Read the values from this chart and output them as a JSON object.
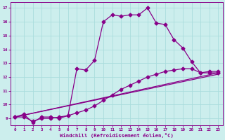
{
  "line1_x": [
    0,
    1,
    2,
    3,
    4,
    5,
    6,
    7,
    8,
    9,
    10,
    11,
    12,
    13,
    14,
    15,
    16,
    17,
    18,
    19,
    20,
    21,
    22,
    23
  ],
  "line1_y": [
    9.1,
    9.3,
    8.7,
    9.1,
    9.1,
    9.0,
    9.2,
    12.6,
    12.5,
    13.2,
    16.0,
    16.5,
    16.4,
    16.5,
    16.5,
    17.0,
    15.9,
    15.8,
    14.7,
    14.1,
    13.1,
    12.3,
    12.4,
    12.4
  ],
  "line2_x": [
    0,
    1,
    2,
    3,
    4,
    5,
    6,
    7,
    8,
    9,
    10,
    11,
    12,
    13,
    14,
    15,
    16,
    17,
    18,
    19,
    20,
    21,
    22,
    23
  ],
  "line2_y": [
    9.1,
    9.1,
    8.8,
    9.0,
    9.0,
    9.1,
    9.2,
    9.4,
    9.6,
    9.9,
    10.3,
    10.7,
    11.1,
    11.4,
    11.7,
    12.0,
    12.2,
    12.4,
    12.5,
    12.6,
    12.6,
    12.3,
    12.3,
    12.3
  ],
  "line3_x": [
    0,
    23
  ],
  "line3_y": [
    9.1,
    12.3
  ],
  "line4_x": [
    0,
    23
  ],
  "line4_y": [
    9.1,
    12.2
  ],
  "bg_color": "#cceeed",
  "line_color": "#880088",
  "grid_color": "#aadddd",
  "xlabel": "Windchill (Refroidissement éolien,°C)",
  "xlim": [
    -0.5,
    23.5
  ],
  "ylim": [
    8.5,
    17.4
  ],
  "yticks": [
    9,
    10,
    11,
    12,
    13,
    14,
    15,
    16,
    17
  ],
  "xticks": [
    0,
    1,
    2,
    3,
    4,
    5,
    6,
    7,
    8,
    9,
    10,
    11,
    12,
    13,
    14,
    15,
    16,
    17,
    18,
    19,
    20,
    21,
    22,
    23
  ],
  "marker_size": 2.5,
  "linewidth": 0.9
}
